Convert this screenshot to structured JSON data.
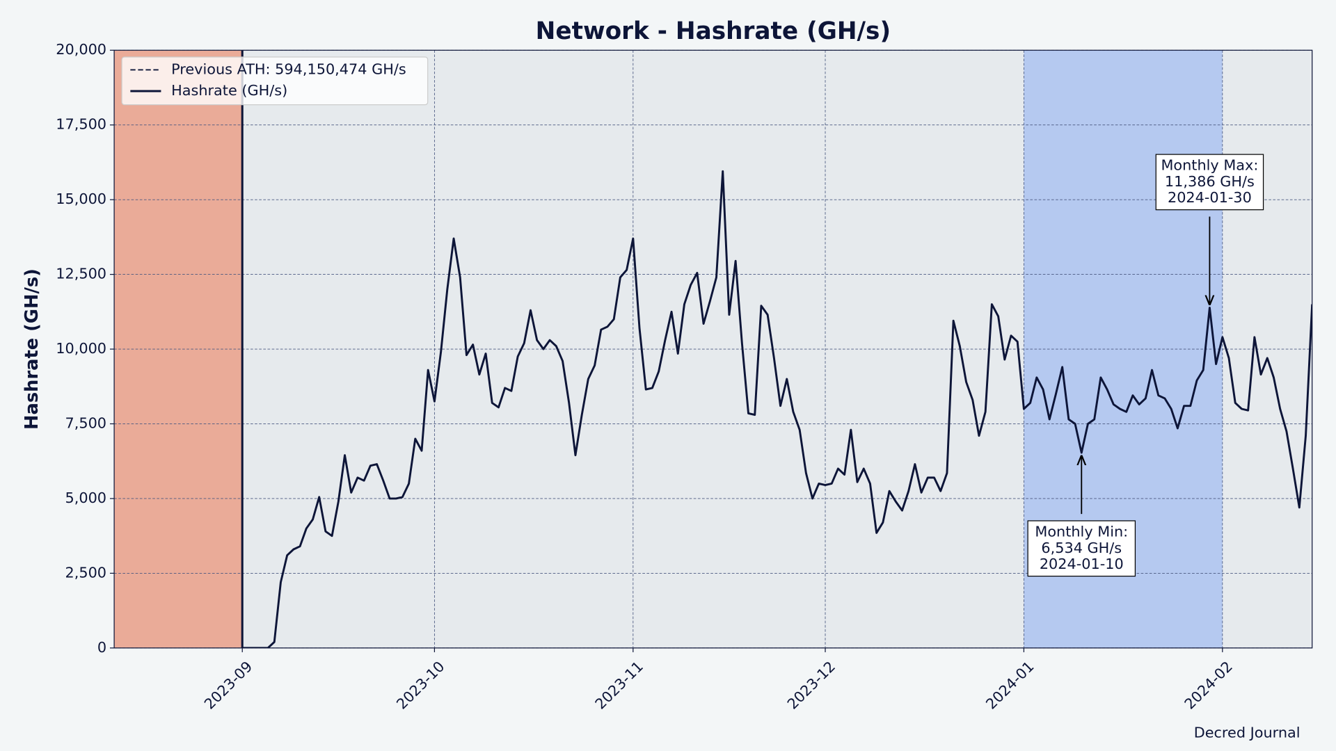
{
  "chart_data": {
    "type": "line",
    "title": "Network - Hashrate (GH/s)",
    "ylabel": "Hashrate (GH/s)",
    "footer": "Decred Journal",
    "grid": true,
    "legend": "upper left",
    "xlim": [
      "2023-08-12",
      "2024-02-15"
    ],
    "xticks": [
      "2023-09",
      "2023-10",
      "2023-11",
      "2023-12",
      "2024-01",
      "2024-02"
    ],
    "ylim": [
      0,
      20000
    ],
    "yticks": [
      0,
      {
        "value": 2500,
        "label": "2,500"
      },
      {
        "value": 5000,
        "label": "5,000"
      },
      {
        "value": 7500,
        "label": "7,500"
      },
      {
        "value": 10000,
        "label": "10,000"
      },
      {
        "value": 12500,
        "label": "12,500"
      },
      {
        "value": 15000,
        "label": "15,000"
      },
      {
        "value": 17500,
        "label": "17,500"
      },
      {
        "value": 20000,
        "label": "20,000"
      }
    ],
    "spans": [
      {
        "start": "2023-08-12",
        "end": "2023-09-01",
        "color": "#eaab98"
      },
      {
        "start": "2024-01-01",
        "end": "2024-02-01",
        "color": "#b5c9f0"
      }
    ],
    "vlines": [
      "2023-09-01"
    ],
    "reference_line": {
      "name": "Previous ATH: 594,150,474 GH/s",
      "value": 594150474,
      "color": "#0d1538"
    },
    "x": [
      "2023-09-01",
      "2023-09-02",
      "2023-09-03",
      "2023-09-04",
      "2023-09-05",
      "2023-09-06",
      "2023-09-07",
      "2023-09-08",
      "2023-09-09",
      "2023-09-10",
      "2023-09-11",
      "2023-09-12",
      "2023-09-13",
      "2023-09-14",
      "2023-09-15",
      "2023-09-16",
      "2023-09-17",
      "2023-09-18",
      "2023-09-19",
      "2023-09-20",
      "2023-09-21",
      "2023-09-22",
      "2023-09-23",
      "2023-09-24",
      "2023-09-25",
      "2023-09-26",
      "2023-09-27",
      "2023-09-28",
      "2023-09-29",
      "2023-09-30",
      "2023-10-01",
      "2023-10-02",
      "2023-10-03",
      "2023-10-04",
      "2023-10-05",
      "2023-10-06",
      "2023-10-07",
      "2023-10-08",
      "2023-10-09",
      "2023-10-10",
      "2023-10-11",
      "2023-10-12",
      "2023-10-13",
      "2023-10-14",
      "2023-10-15",
      "2023-10-16",
      "2023-10-17",
      "2023-10-18",
      "2023-10-19",
      "2023-10-20",
      "2023-10-21",
      "2023-10-22",
      "2023-10-23",
      "2023-10-24",
      "2023-10-25",
      "2023-10-26",
      "2023-10-27",
      "2023-10-28",
      "2023-10-29",
      "2023-10-30",
      "2023-10-31",
      "2023-11-01",
      "2023-11-02",
      "2023-11-03",
      "2023-11-04",
      "2023-11-05",
      "2023-11-06",
      "2023-11-07",
      "2023-11-08",
      "2023-11-09",
      "2023-11-10",
      "2023-11-11",
      "2023-11-12",
      "2023-11-13",
      "2023-11-14",
      "2023-11-15",
      "2023-11-16",
      "2023-11-17",
      "2023-11-18",
      "2023-11-19",
      "2023-11-20",
      "2023-11-21",
      "2023-11-22",
      "2023-11-23",
      "2023-11-24",
      "2023-11-25",
      "2023-11-26",
      "2023-11-27",
      "2023-11-28",
      "2023-11-29",
      "2023-11-30",
      "2023-12-01",
      "2023-12-02",
      "2023-12-03",
      "2023-12-04",
      "2023-12-05",
      "2023-12-06",
      "2023-12-07",
      "2023-12-08",
      "2023-12-09",
      "2023-12-10",
      "2023-12-11",
      "2023-12-12",
      "2023-12-13",
      "2023-12-14",
      "2023-12-15",
      "2023-12-16",
      "2023-12-17",
      "2023-12-18",
      "2023-12-19",
      "2023-12-20",
      "2023-12-21",
      "2023-12-22",
      "2023-12-23",
      "2023-12-24",
      "2023-12-25",
      "2023-12-26",
      "2023-12-27",
      "2023-12-28",
      "2023-12-29",
      "2023-12-30",
      "2023-12-31",
      "2024-01-01",
      "2024-01-02",
      "2024-01-03",
      "2024-01-04",
      "2024-01-05",
      "2024-01-06",
      "2024-01-07",
      "2024-01-08",
      "2024-01-09",
      "2024-01-10",
      "2024-01-11",
      "2024-01-12",
      "2024-01-13",
      "2024-01-14",
      "2024-01-15",
      "2024-01-16",
      "2024-01-17",
      "2024-01-18",
      "2024-01-19",
      "2024-01-20",
      "2024-01-21",
      "2024-01-22",
      "2024-01-23",
      "2024-01-24",
      "2024-01-25",
      "2024-01-26",
      "2024-01-27",
      "2024-01-28",
      "2024-01-29",
      "2024-01-30",
      "2024-01-31",
      "2024-02-01",
      "2024-02-02",
      "2024-02-03",
      "2024-02-04",
      "2024-02-05",
      "2024-02-06",
      "2024-02-07",
      "2024-02-08",
      "2024-02-09",
      "2024-02-10",
      "2024-02-11",
      "2024-02-12",
      "2024-02-13",
      "2024-02-14",
      "2024-02-15"
    ],
    "series": [
      {
        "name": "Hashrate (GH/s)",
        "color": "#0d1538",
        "values": [
          0,
          0,
          0,
          0,
          0,
          200,
          2200,
          3100,
          3300,
          3400,
          4000,
          4300,
          5050,
          3900,
          3750,
          4900,
          6450,
          5200,
          5700,
          5600,
          6100,
          6150,
          5600,
          5000,
          5000,
          5050,
          5500,
          7000,
          6600,
          9300,
          8250,
          9900,
          12000,
          13700,
          12400,
          9800,
          10150,
          9150,
          9850,
          8200,
          8050,
          8700,
          8600,
          9750,
          10200,
          11300,
          10300,
          10000,
          10300,
          10100,
          9600,
          8200,
          6450,
          7800,
          9000,
          9450,
          10650,
          10750,
          11000,
          12400,
          12650,
          13700,
          10700,
          8650,
          8700,
          9250,
          10300,
          11250,
          9850,
          11500,
          12150,
          12550,
          10850,
          11600,
          12400,
          15950,
          11150,
          12950,
          10200,
          7850,
          7800,
          11450,
          11150,
          9700,
          8100,
          9000,
          7900,
          7300,
          5850,
          5000,
          5500,
          5450,
          5500,
          6000,
          5800,
          7300,
          5550,
          6000,
          5500,
          3850,
          4200,
          5250,
          4900,
          4600,
          5250,
          6150,
          5200,
          5700,
          5700,
          5250,
          5850,
          10950,
          10100,
          8900,
          8300,
          7100,
          7900,
          11500,
          11100,
          9650,
          10450,
          10250,
          8000,
          8200,
          9050,
          8650,
          7650,
          8500,
          9400,
          7650,
          7500,
          6534,
          7500,
          7650,
          9050,
          8650,
          8150,
          8000,
          7900,
          8450,
          8150,
          8350,
          9300,
          8450,
          8350,
          8000,
          7350,
          8100,
          8100,
          8950,
          9300,
          11386,
          9500,
          10400,
          9700,
          8200,
          8000,
          7950,
          10400,
          9150,
          9700,
          9050,
          8000,
          7250,
          6000,
          4700,
          7100,
          11500
        ]
      }
    ],
    "annotations": [
      {
        "lines": [
          "Monthly Max:",
          "11,386 GH/s",
          "2024-01-30"
        ],
        "x": "2024-01-30",
        "y": 11386
      },
      {
        "lines": [
          "Monthly Min:",
          "6,534 GH/s",
          "2024-01-10"
        ],
        "x": "2024-01-10",
        "y": 6534
      }
    ]
  }
}
